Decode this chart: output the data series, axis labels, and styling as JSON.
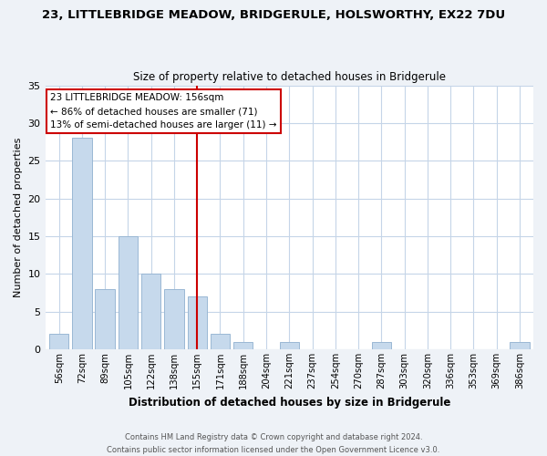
{
  "title": "23, LITTLEBRIDGE MEADOW, BRIDGERULE, HOLSWORTHY, EX22 7DU",
  "subtitle": "Size of property relative to detached houses in Bridgerule",
  "xlabel": "Distribution of detached houses by size in Bridgerule",
  "ylabel": "Number of detached properties",
  "bar_labels": [
    "56sqm",
    "72sqm",
    "89sqm",
    "105sqm",
    "122sqm",
    "138sqm",
    "155sqm",
    "171sqm",
    "188sqm",
    "204sqm",
    "221sqm",
    "237sqm",
    "254sqm",
    "270sqm",
    "287sqm",
    "303sqm",
    "320sqm",
    "336sqm",
    "353sqm",
    "369sqm",
    "386sqm"
  ],
  "bar_values": [
    2,
    28,
    8,
    15,
    10,
    8,
    7,
    2,
    1,
    0,
    1,
    0,
    0,
    0,
    1,
    0,
    0,
    0,
    0,
    0,
    1
  ],
  "bar_color": "#c6d9ec",
  "bar_edge_color": "#9ab8d4",
  "vline_x_index": 6,
  "vline_color": "#cc0000",
  "ylim": [
    0,
    35
  ],
  "yticks": [
    0,
    5,
    10,
    15,
    20,
    25,
    30,
    35
  ],
  "annotation_line1": "23 LITTLEBRIDGE MEADOW: 156sqm",
  "annotation_line2": "← 86% of detached houses are smaller (71)",
  "annotation_line3": "13% of semi-detached houses are larger (11) →",
  "annotation_box_color": "#ffffff",
  "annotation_box_edge": "#cc0000",
  "footer_line1": "Contains HM Land Registry data © Crown copyright and database right 2024.",
  "footer_line2": "Contains public sector information licensed under the Open Government Licence v3.0.",
  "background_color": "#eef2f7",
  "plot_background_color": "#ffffff",
  "grid_color": "#c5d5e8"
}
